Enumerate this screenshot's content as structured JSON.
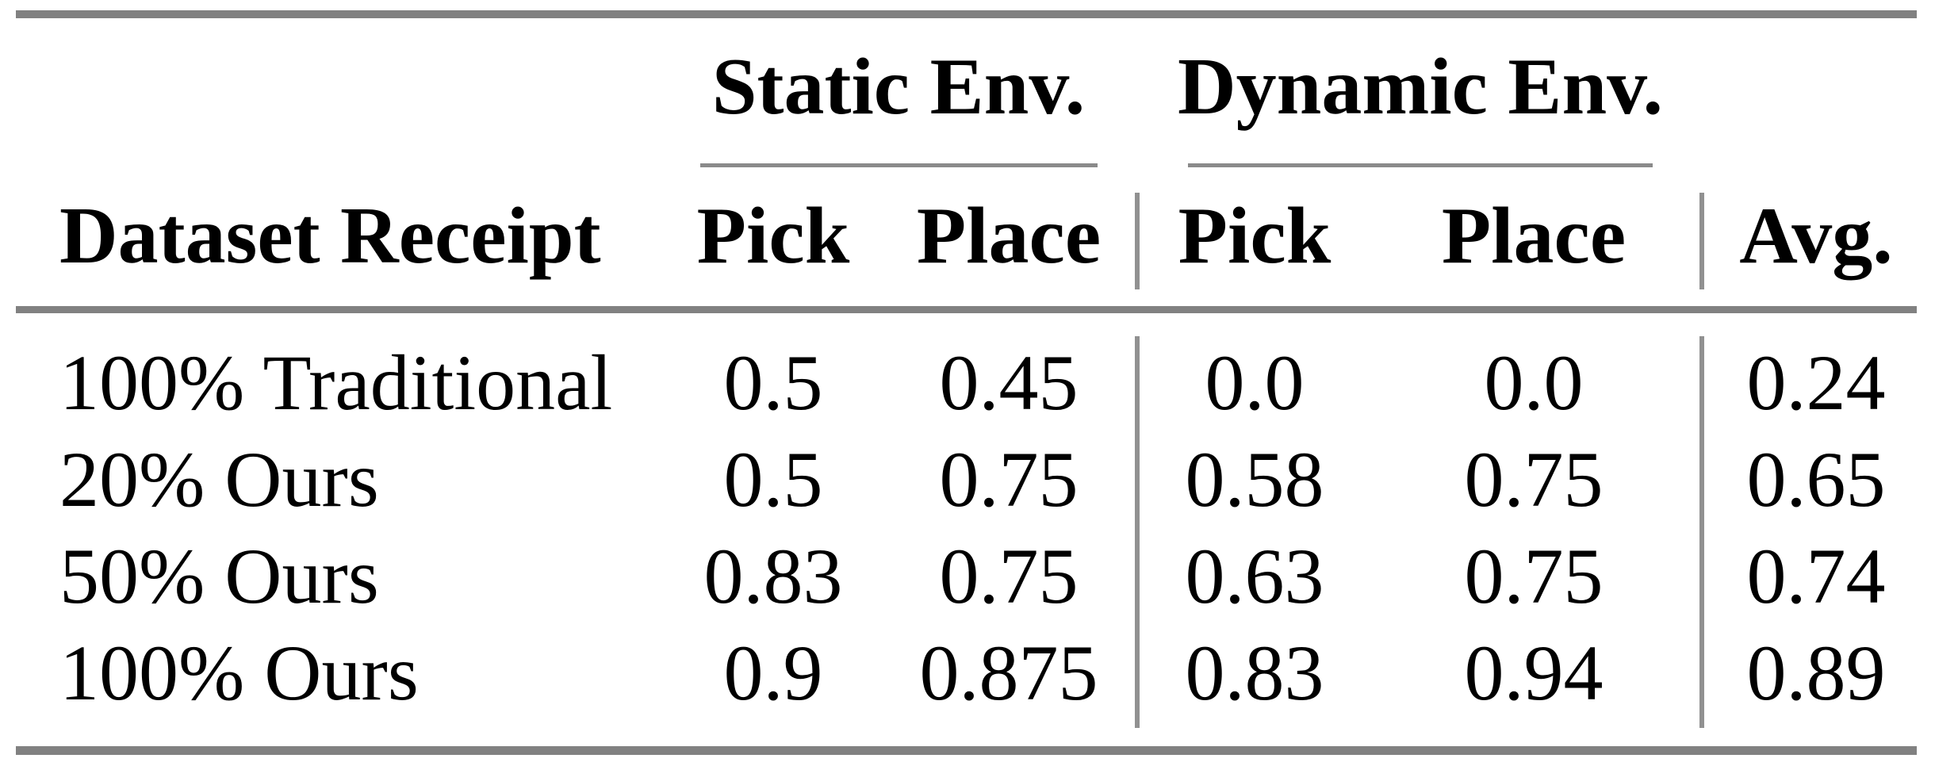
{
  "table": {
    "row_header_label": "Dataset Receipt",
    "groups": [
      {
        "label": "Static Env.",
        "columns": [
          "Pick",
          "Place"
        ]
      },
      {
        "label": "Dynamic Env.",
        "columns": [
          "Pick",
          "Place"
        ]
      }
    ],
    "avg_label": "Avg.",
    "rows": [
      {
        "cells": [
          "100% Traditional",
          "0.5",
          "0.45",
          "0.0",
          "0.0",
          "0.24"
        ]
      },
      {
        "cells": [
          "20% Ours",
          "0.5",
          "0.75",
          "0.58",
          "0.75",
          "0.65"
        ]
      },
      {
        "cells": [
          "50% Ours",
          "0.83",
          "0.75",
          "0.63",
          "0.75",
          "0.74"
        ]
      },
      {
        "cells": [
          "100% Ours",
          "0.9",
          "0.875",
          "0.83",
          "0.94",
          "0.89"
        ]
      }
    ]
  },
  "colors": {
    "rule_gray": "#818181",
    "thin_rule_gray": "#8a8a8a",
    "divider_gray": "#919191",
    "text_black": "#000000",
    "page_bg": "#ffffff"
  },
  "chart_data": {
    "type": "table",
    "title": "",
    "columns": [
      "Dataset Receipt",
      "Static Env. Pick",
      "Static Env. Place",
      "Dynamic Env. Pick",
      "Dynamic Env. Place",
      "Avg."
    ],
    "rows": [
      [
        "100% Traditional",
        0.5,
        0.45,
        0.0,
        0.0,
        0.24
      ],
      [
        "20% Ours",
        0.5,
        0.75,
        0.58,
        0.75,
        0.65
      ],
      [
        "50% Ours",
        0.83,
        0.75,
        0.63,
        0.75,
        0.74
      ],
      [
        "100% Ours",
        0.9,
        0.875,
        0.83,
        0.94,
        0.89
      ]
    ]
  }
}
